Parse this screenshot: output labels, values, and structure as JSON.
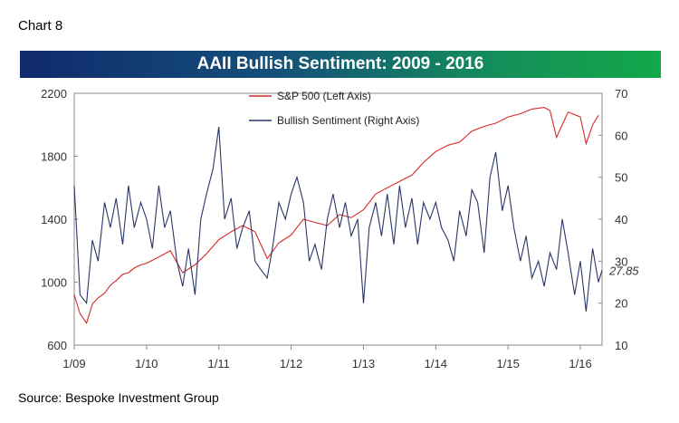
{
  "header": {
    "chart_number": "Chart 8"
  },
  "footer": {
    "source": "Source: Bespoke Investment Group"
  },
  "colors": {
    "sp500": "#d42a2a",
    "sentiment": "#2b3566",
    "banner_start": "#102a6c",
    "banner_end": "#12a848"
  },
  "chart_data": {
    "type": "line",
    "title": "AAII Bullish Sentiment: 2009 - 2016",
    "x_ticks": [
      "1/09",
      "1/10",
      "1/11",
      "1/12",
      "1/13",
      "1/14",
      "1/15",
      "1/16"
    ],
    "x_range": [
      2009.0,
      2016.3
    ],
    "y_left": {
      "ticks": [
        600,
        1000,
        1400,
        1800,
        2200
      ],
      "range": [
        600,
        2200
      ]
    },
    "y_right": {
      "ticks": [
        10,
        20,
        30,
        40,
        50,
        60,
        70
      ],
      "range": [
        10,
        70
      ]
    },
    "legend_position": "top-center",
    "grid": false,
    "annotation": {
      "text": "27.85",
      "value": 27.85,
      "color": "#d42a2a"
    },
    "series": [
      {
        "name": "S&P 500 (Left Axis)",
        "axis": "left",
        "x": [
          2009.0,
          2009.08,
          2009.17,
          2009.25,
          2009.33,
          2009.42,
          2009.5,
          2009.58,
          2009.67,
          2009.75,
          2009.83,
          2009.92,
          2010.0,
          2010.17,
          2010.33,
          2010.5,
          2010.67,
          2010.83,
          2011.0,
          2011.17,
          2011.33,
          2011.5,
          2011.67,
          2011.83,
          2012.0,
          2012.17,
          2012.33,
          2012.5,
          2012.67,
          2012.83,
          2013.0,
          2013.17,
          2013.33,
          2013.5,
          2013.67,
          2013.83,
          2014.0,
          2014.17,
          2014.33,
          2014.5,
          2014.67,
          2014.83,
          2015.0,
          2015.17,
          2015.33,
          2015.5,
          2015.58,
          2015.67,
          2015.83,
          2016.0,
          2016.08,
          2016.17,
          2016.25
        ],
        "values": [
          920,
          800,
          740,
          860,
          900,
          930,
          980,
          1010,
          1050,
          1060,
          1090,
          1110,
          1120,
          1160,
          1200,
          1060,
          1110,
          1180,
          1270,
          1320,
          1360,
          1320,
          1150,
          1250,
          1300,
          1400,
          1380,
          1360,
          1430,
          1410,
          1460,
          1560,
          1600,
          1640,
          1680,
          1760,
          1830,
          1870,
          1890,
          1960,
          1990,
          2010,
          2050,
          2070,
          2100,
          2110,
          2090,
          1920,
          2080,
          2050,
          1880,
          2000,
          2060
        ]
      },
      {
        "name": "Bullish Sentiment (Right Axis)",
        "axis": "right",
        "x": [
          2009.0,
          2009.08,
          2009.17,
          2009.25,
          2009.33,
          2009.42,
          2009.5,
          2009.58,
          2009.67,
          2009.75,
          2009.83,
          2009.92,
          2010.0,
          2010.08,
          2010.17,
          2010.25,
          2010.33,
          2010.42,
          2010.5,
          2010.58,
          2010.67,
          2010.75,
          2010.83,
          2010.92,
          2011.0,
          2011.08,
          2011.17,
          2011.25,
          2011.33,
          2011.42,
          2011.5,
          2011.58,
          2011.67,
          2011.75,
          2011.83,
          2011.92,
          2012.0,
          2012.08,
          2012.17,
          2012.25,
          2012.33,
          2012.42,
          2012.5,
          2012.58,
          2012.67,
          2012.75,
          2012.83,
          2012.92,
          2013.0,
          2013.08,
          2013.17,
          2013.25,
          2013.33,
          2013.42,
          2013.5,
          2013.58,
          2013.67,
          2013.75,
          2013.83,
          2013.92,
          2014.0,
          2014.08,
          2014.17,
          2014.25,
          2014.33,
          2014.42,
          2014.5,
          2014.58,
          2014.67,
          2014.75,
          2014.83,
          2014.92,
          2015.0,
          2015.08,
          2015.17,
          2015.25,
          2015.33,
          2015.42,
          2015.5,
          2015.58,
          2015.67,
          2015.75,
          2015.83,
          2015.92,
          2016.0,
          2016.08,
          2016.17,
          2016.25,
          2016.3
        ],
        "values": [
          48,
          22,
          20,
          35,
          30,
          44,
          38,
          45,
          34,
          48,
          38,
          44,
          40,
          33,
          48,
          38,
          42,
          30,
          24,
          33,
          22,
          40,
          46,
          52,
          62,
          40,
          45,
          33,
          38,
          42,
          30,
          28,
          26,
          34,
          44,
          40,
          46,
          50,
          44,
          30,
          34,
          28,
          40,
          46,
          38,
          44,
          36,
          40,
          20,
          38,
          44,
          36,
          46,
          34,
          48,
          38,
          45,
          34,
          44,
          40,
          44,
          38,
          35,
          30,
          42,
          36,
          47,
          44,
          32,
          50,
          56,
          42,
          48,
          38,
          30,
          36,
          26,
          30,
          24,
          32,
          28,
          40,
          32,
          22,
          30,
          18,
          33,
          25,
          27.85
        ]
      }
    ]
  }
}
